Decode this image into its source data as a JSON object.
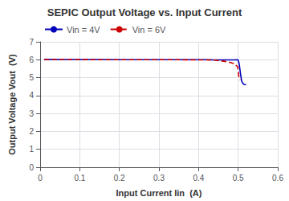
{
  "chart_data": {
    "type": "line",
    "title": "SEPIC Output Voltage vs. Input Current",
    "xlabel": "Input Current Iin  (A)",
    "ylabel": "Output Voltage Vout  (V)",
    "xlim": [
      0,
      0.6
    ],
    "ylim": [
      0,
      7
    ],
    "xticks": [
      0,
      0.1,
      0.2,
      0.3,
      0.4,
      0.5,
      0.6
    ],
    "yticks": [
      0,
      1,
      2,
      3,
      4,
      5,
      6,
      7
    ],
    "grid": true,
    "legend": "upper left",
    "series": [
      {
        "name": "Vin = 4V",
        "color": "#0000BB",
        "line_style": "solid",
        "x": [
          0.01,
          0.05,
          0.1,
          0.15,
          0.2,
          0.25,
          0.3,
          0.35,
          0.4,
          0.42,
          0.44,
          0.46,
          0.475,
          0.49,
          0.499,
          0.501,
          0.503,
          0.506,
          0.509,
          0.512,
          0.515,
          0.52
        ],
        "values": [
          6.02,
          6.01,
          6.01,
          6.01,
          6.0,
          6.0,
          6.0,
          6.0,
          6.0,
          6.0,
          5.99,
          5.99,
          5.99,
          5.99,
          6.0,
          5.92,
          5.7,
          5.2,
          4.8,
          4.68,
          4.62,
          4.6
        ]
      },
      {
        "name": "Vin = 6V",
        "color": "#CC0000",
        "line_style": "dashed",
        "x": [
          0.01,
          0.05,
          0.1,
          0.15,
          0.2,
          0.25,
          0.3,
          0.35,
          0.4,
          0.42,
          0.44,
          0.46,
          0.475,
          0.49,
          0.499,
          0.502,
          0.505
        ],
        "values": [
          6.01,
          6.01,
          6.01,
          6.0,
          6.0,
          6.0,
          6.0,
          6.0,
          5.99,
          5.99,
          5.98,
          5.93,
          5.88,
          5.78,
          5.6,
          5.0,
          4.88
        ]
      }
    ]
  }
}
